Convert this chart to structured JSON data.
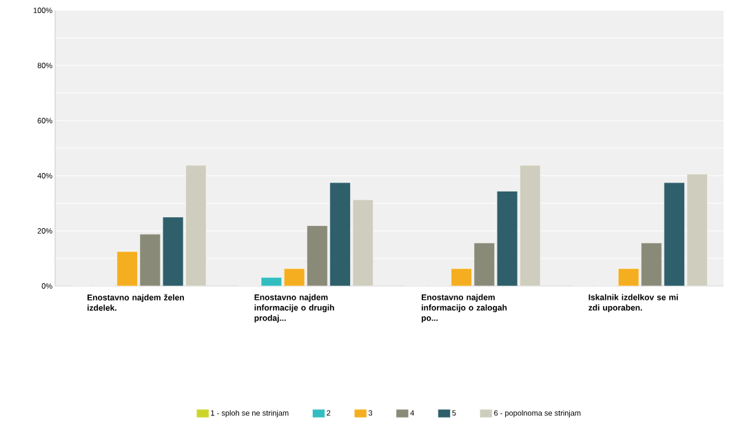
{
  "chart_data": {
    "type": "bar",
    "categories": [
      "Enostavno najdem želen izdelek.",
      "Enostavno najdem informacije o drugih prodaj...",
      "Enostavno najdem informacijo o zalogah po...",
      "Iskalnik izdelkov se mi zdi uporaben."
    ],
    "series": [
      {
        "name": "1 - sploh se ne strinjam",
        "color": "#cdd52a",
        "values": [
          0,
          0,
          0,
          0
        ]
      },
      {
        "name": "2",
        "color": "#33bdc0",
        "values": [
          0,
          3.1,
          0,
          0
        ]
      },
      {
        "name": "3",
        "color": "#f5ae1f",
        "values": [
          12.5,
          6.3,
          6.3,
          6.3
        ]
      },
      {
        "name": "4",
        "color": "#8a8a78",
        "values": [
          18.8,
          21.9,
          15.6,
          15.6
        ]
      },
      {
        "name": "5",
        "color": "#2e5f6b",
        "values": [
          25,
          37.5,
          34.4,
          37.5
        ]
      },
      {
        "name": "6 - popolnoma se strinjam",
        "color": "#cfcebe",
        "values": [
          43.8,
          31.3,
          43.8,
          40.6
        ]
      }
    ],
    "ylim": [
      0,
      100
    ],
    "yticks": [
      {
        "value": 0,
        "label": "0%"
      },
      {
        "value": 10,
        "label": null
      },
      {
        "value": 20,
        "label": "20%"
      },
      {
        "value": 30,
        "label": null
      },
      {
        "value": 40,
        "label": "40%"
      },
      {
        "value": 50,
        "label": null
      },
      {
        "value": 60,
        "label": "60%"
      },
      {
        "value": 70,
        "label": null
      },
      {
        "value": 80,
        "label": "80%"
      },
      {
        "value": 90,
        "label": null
      },
      {
        "value": 100,
        "label": "100%"
      }
    ],
    "grid": "y",
    "legend": "bottom"
  }
}
